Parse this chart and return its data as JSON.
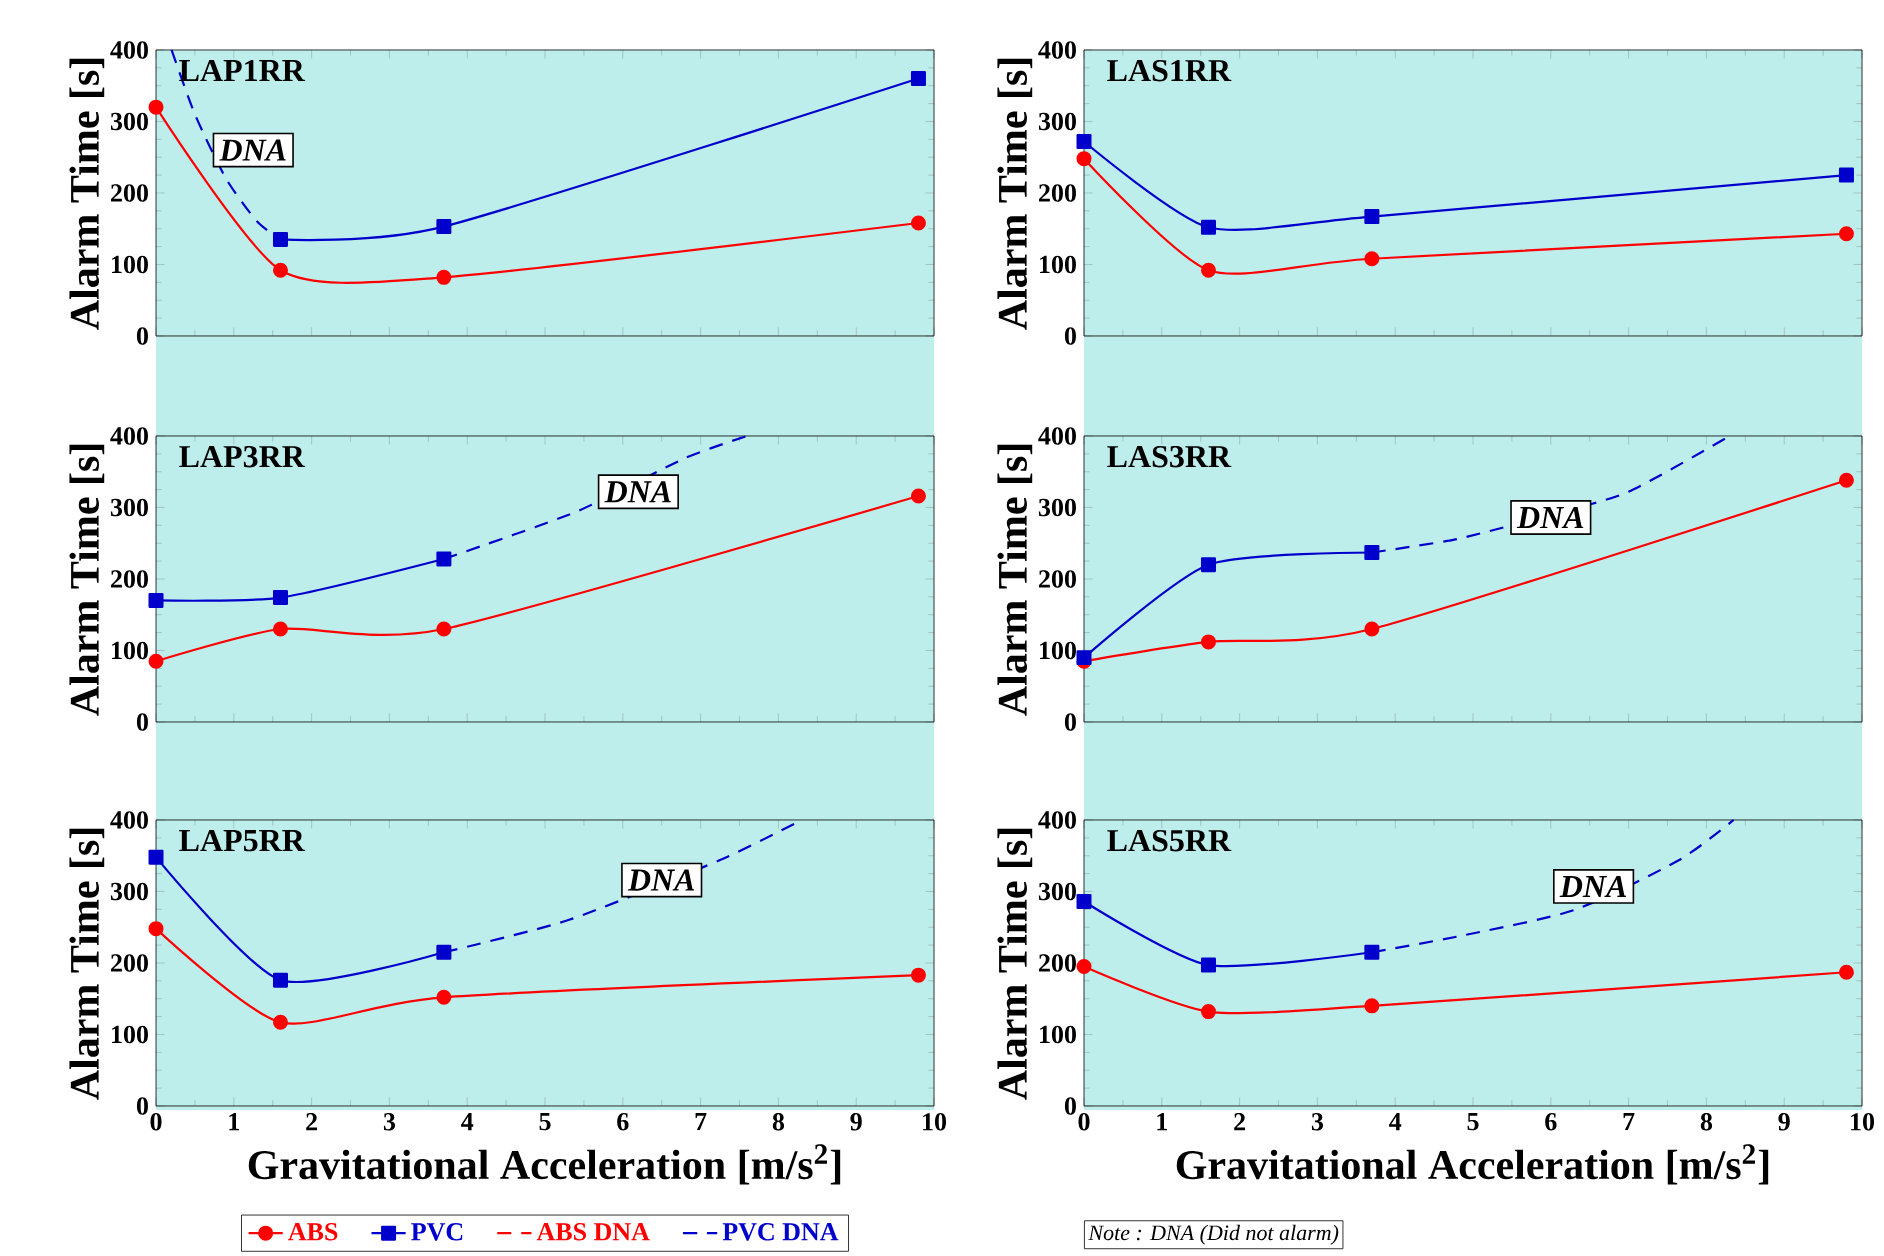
{
  "chart_data": [
    {
      "type": "line",
      "title": "LAP1RR",
      "ylabel": "Alarm Time [s]",
      "xlim": [
        0,
        10
      ],
      "xticks": [
        0,
        1,
        2,
        3,
        4,
        5,
        6,
        7,
        8,
        9,
        10
      ],
      "ylim": [
        0,
        400
      ],
      "yticks": [
        0,
        100,
        200,
        300,
        400
      ],
      "tick_labels": "y",
      "series": [
        {
          "color": "#ff0000",
          "x": [
            0,
            1.6,
            3.7,
            9.8
          ],
          "values": [
            320,
            92,
            82,
            158
          ],
          "marker": "circle",
          "line_style": "solid"
        },
        {
          "color": "#0000cc",
          "x": [
            1.6,
            3.7,
            9.8
          ],
          "values": [
            135,
            153,
            360
          ],
          "marker": "square",
          "line_style": "solid"
        },
        {
          "color": "#0000cc",
          "x": [
            0.2,
            0.5,
            0.9,
            1.3,
            1.6
          ],
          "values": [
            400,
            310,
            220,
            160,
            135
          ],
          "marker": "none",
          "line_style": "dashed"
        }
      ],
      "annotations": [
        {
          "text": "DNA",
          "x": 1.25,
          "y": 260
        }
      ]
    },
    {
      "type": "line",
      "title": "LAS1RR",
      "ylabel": "Alarm Time [s]",
      "xlim": [
        0,
        10
      ],
      "xticks": [
        0,
        1,
        2,
        3,
        4,
        5,
        6,
        7,
        8,
        9,
        10
      ],
      "ylim": [
        0,
        400
      ],
      "yticks": [
        0,
        100,
        200,
        300,
        400
      ],
      "tick_labels": "y",
      "series": [
        {
          "color": "#ff0000",
          "x": [
            0,
            1.6,
            3.7,
            9.8
          ],
          "values": [
            248,
            92,
            108,
            143
          ],
          "marker": "circle",
          "line_style": "solid"
        },
        {
          "color": "#0000cc",
          "x": [
            0,
            1.6,
            3.7,
            9.8
          ],
          "values": [
            272,
            152,
            167,
            225
          ],
          "marker": "square",
          "line_style": "solid"
        }
      ]
    },
    {
      "type": "line",
      "title": "LAP3RR",
      "ylabel": "Alarm Time [s]",
      "xlim": [
        0,
        10
      ],
      "xticks": [
        0,
        1,
        2,
        3,
        4,
        5,
        6,
        7,
        8,
        9,
        10
      ],
      "ylim": [
        0,
        400
      ],
      "yticks": [
        0,
        100,
        200,
        300,
        400
      ],
      "tick_labels": "y",
      "series": [
        {
          "color": "#ff0000",
          "x": [
            0,
            1.6,
            3.7,
            9.8
          ],
          "values": [
            85,
            130,
            130,
            316
          ],
          "marker": "circle",
          "line_style": "solid"
        },
        {
          "color": "#0000cc",
          "x": [
            0,
            1.6,
            3.7
          ],
          "values": [
            170,
            174,
            228
          ],
          "marker": "square",
          "line_style": "solid"
        },
        {
          "color": "#0000cc",
          "x": [
            3.7,
            5.4,
            6.8,
            7.6
          ],
          "values": [
            228,
            294,
            369,
            400
          ],
          "marker": "none",
          "line_style": "dashed"
        }
      ],
      "annotations": [
        {
          "text": "DNA",
          "x": 6.2,
          "y": 322
        }
      ]
    },
    {
      "type": "line",
      "title": "LAS3RR",
      "ylabel": "Alarm Time [s]",
      "xlim": [
        0,
        10
      ],
      "xticks": [
        0,
        1,
        2,
        3,
        4,
        5,
        6,
        7,
        8,
        9,
        10
      ],
      "ylim": [
        0,
        400
      ],
      "yticks": [
        0,
        100,
        200,
        300,
        400
      ],
      "tick_labels": "y",
      "series": [
        {
          "color": "#ff0000",
          "x": [
            0,
            1.6,
            3.7,
            9.8
          ],
          "values": [
            85,
            112,
            130,
            338
          ],
          "marker": "circle",
          "line_style": "solid"
        },
        {
          "color": "#0000cc",
          "x": [
            0,
            1.6,
            3.7
          ],
          "values": [
            90,
            220,
            237
          ],
          "marker": "square",
          "line_style": "solid"
        },
        {
          "color": "#0000cc",
          "x": [
            3.7,
            4.8,
            6.0,
            7.0,
            8.3
          ],
          "values": [
            237,
            256,
            290,
            322,
            400
          ],
          "marker": "none",
          "line_style": "dashed"
        }
      ],
      "annotations": [
        {
          "text": "DNA",
          "x": 6.0,
          "y": 286
        }
      ]
    },
    {
      "type": "line",
      "title": "LAP5RR",
      "xlabel": "Gravitational Acceleration [m/s$^{2}$]",
      "ylabel": "Alarm Time [s]",
      "xlim": [
        0,
        10
      ],
      "xticks": [
        0,
        1,
        2,
        3,
        4,
        5,
        6,
        7,
        8,
        9,
        10
      ],
      "ylim": [
        0,
        400
      ],
      "yticks": [
        0,
        100,
        200,
        300,
        400
      ],
      "legend": "bottom",
      "series": [
        {
          "name": "ABS",
          "color": "#ff0000",
          "x": [
            0,
            1.6,
            3.7,
            9.8
          ],
          "values": [
            248,
            117,
            152,
            183
          ],
          "marker": "circle",
          "line_style": "solid"
        },
        {
          "name": "PVC",
          "color": "#0000cc",
          "x": [
            0,
            1.6,
            3.7
          ],
          "values": [
            348,
            176,
            215
          ],
          "marker": "square",
          "line_style": "solid"
        },
        {
          "name": "ABS DNA",
          "color": "#ff0000",
          "marker": "none",
          "line_style": "dashed"
        },
        {
          "name": "PVC DNA",
          "color": "#0000cc",
          "x": [
            3.7,
            5.3,
            7.25,
            8.3
          ],
          "values": [
            215,
            260,
            344,
            400
          ],
          "marker": "none",
          "line_style": "dashed"
        }
      ],
      "annotations": [
        {
          "text": "DNA",
          "x": 6.5,
          "y": 316
        }
      ]
    },
    {
      "type": "line",
      "title": "LAS5RR",
      "xlabel": "Gravitational Acceleration [m/s$^{2}$]",
      "ylabel": "Alarm Time [s]",
      "xlim": [
        0,
        10
      ],
      "xticks": [
        0,
        1,
        2,
        3,
        4,
        5,
        6,
        7,
        8,
        9,
        10
      ],
      "ylim": [
        0,
        400
      ],
      "yticks": [
        0,
        100,
        200,
        300,
        400
      ],
      "series": [
        {
          "color": "#ff0000",
          "x": [
            0,
            1.6,
            3.7,
            9.8
          ],
          "values": [
            195,
            132,
            140,
            187
          ],
          "marker": "circle",
          "line_style": "solid"
        },
        {
          "color": "#0000cc",
          "x": [
            0,
            1.6,
            3.7
          ],
          "values": [
            286,
            197,
            215
          ],
          "marker": "square",
          "line_style": "solid"
        },
        {
          "color": "#0000cc",
          "x": [
            3.7,
            4.8,
            6.3,
            7.65,
            8.35
          ],
          "values": [
            215,
            237,
            274,
            344,
            400
          ],
          "marker": "none",
          "line_style": "dashed"
        }
      ],
      "annotations": [
        {
          "text": "DNA",
          "x": 6.55,
          "y": 307
        },
        "Note : DNA (Did not alarm)"
      ]
    }
  ]
}
